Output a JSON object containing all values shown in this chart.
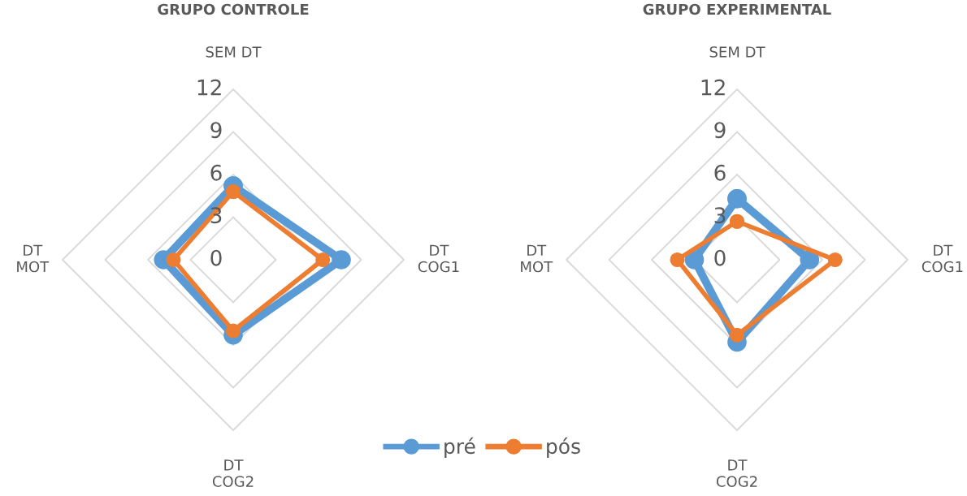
{
  "chart_data": [
    {
      "type": "radar",
      "title": "GRUPO CONTROLE",
      "categories": [
        "SEM DT",
        "DT\nCOG1",
        "DT\nCOG2",
        "DT\nMOT"
      ],
      "ylim": [
        0,
        12
      ],
      "yticks": [
        0,
        3,
        6,
        9,
        12
      ],
      "marker": "circle",
      "legend": "bottom",
      "series": [
        {
          "name": "pré",
          "color": "#5b9bd5",
          "values": [
            5.2,
            7.6,
            5.3,
            4.9
          ]
        },
        {
          "name": "pós",
          "color": "#ed7d31",
          "values": [
            4.8,
            6.3,
            5.0,
            4.2
          ]
        }
      ]
    },
    {
      "type": "radar",
      "title": "GRUPO EXPERIMENTAL",
      "categories": [
        "SEM DT",
        "DT\nCOG1",
        "DT\nCOG2",
        "DT\nMOT"
      ],
      "ylim": [
        0,
        12
      ],
      "yticks": [
        0,
        3,
        6,
        9,
        12
      ],
      "marker": "circle",
      "series": [
        {
          "name": "pré",
          "color": "#5b9bd5",
          "values": [
            4.3,
            5.1,
            5.8,
            3.0
          ]
        },
        {
          "name": "pós",
          "color": "#ed7d31",
          "values": [
            2.7,
            6.9,
            5.3,
            4.2
          ]
        }
      ]
    }
  ]
}
